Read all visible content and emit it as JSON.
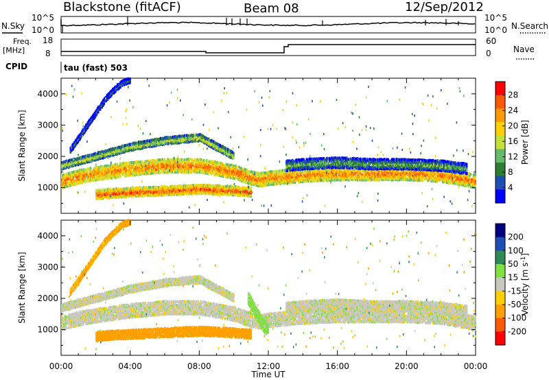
{
  "header": {
    "station": "Blackstone (fitACF)",
    "beam": "Beam 08",
    "date": "12/Sep/2012"
  },
  "top_panels": {
    "nsky_label": "N.Sky",
    "nsky_ticks": [
      "10^5",
      "10^0"
    ],
    "nsearch_label": "N.Search",
    "nsearch_ticks": [
      "10^5",
      "10^0"
    ],
    "freq_label": [
      "Freq.",
      "[MHz]"
    ],
    "freq_ticks": [
      "18",
      "8"
    ],
    "nave_label": "Nave",
    "nave_ticks": [
      "60",
      "0"
    ],
    "cpid_label": "CPID",
    "cpid_text": "tau (fast) 503"
  },
  "colors": {
    "power_scale": [
      "#0000ff",
      "#1f4fb5",
      "#2e7d32",
      "#66bb6a",
      "#c6e03a",
      "#ffd000",
      "#ff9a00",
      "#ff5a00",
      "#ff0000"
    ],
    "velocity_scale": [
      "#ff0000",
      "#ff5a00",
      "#ffa000",
      "#ffd000",
      "#c8c8c0",
      "#80e040",
      "#2e8b57",
      "#1f4fb5",
      "#000080"
    ]
  },
  "chart_data": [
    {
      "type": "heatmap",
      "title": "",
      "xlabel": "Time UT",
      "ylabel": "Slant Range [km]",
      "x_ticks": [
        "00:00",
        "04:00",
        "08:00",
        "12:00",
        "16:00",
        "20:00",
        "00:00"
      ],
      "xlim": [
        0,
        24
      ],
      "ylim": [
        180,
        4500
      ],
      "y_ticks": [
        1000,
        2000,
        3000,
        4000
      ],
      "colorbar": {
        "label": "Power [dB]",
        "ticks": [
          4,
          8,
          12,
          16,
          20,
          24,
          28
        ],
        "range": [
          0,
          30
        ]
      },
      "echo_regions": [
        {
          "t": [
            0.0,
            1.0,
            2.0,
            4.0,
            6.0,
            8.0,
            9.0,
            10.0,
            10.5,
            11.0,
            11.5,
            12.0,
            13.0,
            14.0,
            16.0,
            18.0,
            20.0,
            22.0,
            23.0,
            24.0
          ],
          "r": [
            1200,
            1350,
            1450,
            1600,
            1700,
            1700,
            1600,
            1500,
            1400,
            1300,
            1250,
            1300,
            1350,
            1400,
            1450,
            1450,
            1450,
            1400,
            1300,
            1200
          ],
          "width": 400,
          "power": 24
        },
        {
          "t": [
            0.0,
            2.0,
            4.0,
            6.0,
            8.0,
            9.0,
            10.0
          ],
          "r": [
            1700,
            2000,
            2300,
            2500,
            2600,
            2300,
            2000
          ],
          "width": 200,
          "power": 16
        },
        {
          "t": [
            2.0,
            3.0,
            4.0,
            6.0,
            8.0,
            10.0,
            11.0
          ],
          "r": [
            780,
            820,
            850,
            900,
            950,
            900,
            850
          ],
          "width": 260,
          "power": 26
        },
        {
          "t": [
            0.5,
            1.0,
            1.5,
            2.0,
            2.5,
            3.0,
            3.5,
            4.0
          ],
          "r": [
            2200,
            2600,
            3000,
            3400,
            3800,
            4100,
            4350,
            4450
          ],
          "width": 150,
          "power": 8
        },
        {
          "t": [
            13.0,
            14.0,
            16.0,
            18.0,
            20.0,
            22.0,
            23.5
          ],
          "r": [
            1700,
            1750,
            1800,
            1750,
            1750,
            1700,
            1600
          ],
          "width": 300,
          "power": 12
        }
      ]
    },
    {
      "type": "heatmap",
      "title": "",
      "xlabel": "Time UT",
      "ylabel": "Slant Range [km]",
      "x_ticks": [
        "00:00",
        "04:00",
        "08:00",
        "12:00",
        "16:00",
        "20:00",
        "00:00"
      ],
      "xlim": [
        0,
        24
      ],
      "ylim": [
        180,
        4500
      ],
      "y_ticks": [
        1000,
        2000,
        3000,
        4000
      ],
      "colorbar": {
        "label": "Velocity [m s^-1]",
        "ticks": [
          200,
          100,
          50,
          15,
          -15,
          -50,
          -100,
          -200
        ],
        "range": [
          -250,
          250
        ]
      },
      "echo_regions": [
        {
          "t": [
            0.0,
            1.0,
            2.0,
            4.0,
            6.0,
            8.0,
            9.0,
            10.0,
            10.5,
            11.0,
            11.5,
            12.0,
            13.0,
            14.0,
            16.0,
            18.0,
            20.0,
            22.0,
            23.0,
            24.0
          ],
          "r": [
            1200,
            1350,
            1450,
            1600,
            1700,
            1700,
            1600,
            1500,
            1400,
            1300,
            1250,
            1300,
            1350,
            1400,
            1450,
            1450,
            1450,
            1400,
            1300,
            1200
          ],
          "width": 400,
          "velocity": 0
        },
        {
          "t": [
            0.0,
            2.0,
            4.0,
            6.0,
            8.0,
            9.0,
            10.0
          ],
          "r": [
            1700,
            2000,
            2300,
            2500,
            2600,
            2300,
            2000
          ],
          "width": 200,
          "velocity": 0
        },
        {
          "t": [
            2.0,
            3.0,
            4.0,
            6.0,
            8.0,
            10.0,
            11.0
          ],
          "r": [
            780,
            820,
            850,
            900,
            950,
            900,
            850
          ],
          "width": 260,
          "velocity": -70
        },
        {
          "t": [
            0.5,
            1.0,
            1.5,
            2.0,
            2.5,
            3.0,
            3.5,
            4.0
          ],
          "r": [
            2200,
            2600,
            3000,
            3400,
            3800,
            4100,
            4350,
            4450
          ],
          "width": 150,
          "velocity": -60
        },
        {
          "t": [
            10.8,
            11.2,
            11.6,
            12.0
          ],
          "r": [
            2000,
            1600,
            1200,
            900
          ],
          "width": 350,
          "velocity": 30
        },
        {
          "t": [
            13.0,
            14.0,
            16.0,
            18.0,
            20.0,
            22.0,
            23.5
          ],
          "r": [
            1700,
            1750,
            1800,
            1750,
            1750,
            1700,
            1600
          ],
          "width": 300,
          "velocity": 0
        }
      ]
    }
  ]
}
